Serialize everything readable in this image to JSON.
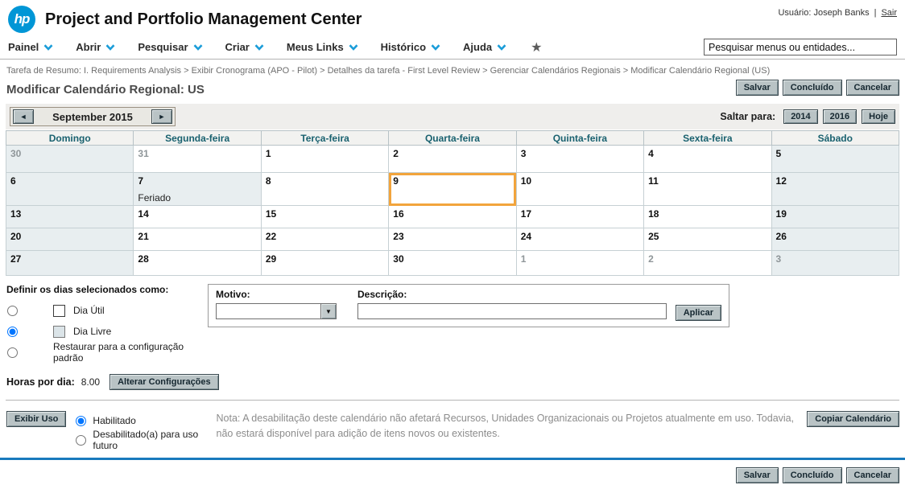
{
  "header": {
    "logo_text": "hp",
    "app_title": "Project and Portfolio Management Center",
    "user_label": "Usuário: Joseph Banks",
    "separator": "|",
    "sign_out": "Sair"
  },
  "menubar": {
    "items": [
      "Painel",
      "Abrir",
      "Pesquisar",
      "Criar",
      "Meus Links",
      "Histórico",
      "Ajuda"
    ],
    "search_placeholder": "Pesquisar menus ou entidades..."
  },
  "breadcrumb": {
    "text": "Tarefa de Resumo: I. Requirements Analysis > Exibir Cronograma (APO - Pilot) > Detalhes da tarefa - First Level Review > Gerenciar Calendários Regionais > Modificar Calendário Regional (US)"
  },
  "page": {
    "title": "Modificar Calendário Regional: US",
    "actions": {
      "save": "Salvar",
      "done": "Concluído",
      "cancel": "Cancelar"
    }
  },
  "calendar": {
    "month_label": "September 2015",
    "jump": {
      "label": "Saltar para:",
      "year_prev": "2014",
      "year_next": "2016",
      "today": "Hoje"
    },
    "day_headers": [
      "Domingo",
      "Segunda-feira",
      "Terça-feira",
      "Quarta-feira",
      "Quinta-feira",
      "Sexta-feira",
      "Sábado"
    ],
    "weeks": [
      [
        {
          "day": "30",
          "shaded": true,
          "muted": true
        },
        {
          "day": "31",
          "muted": true
        },
        {
          "day": "1"
        },
        {
          "day": "2"
        },
        {
          "day": "3"
        },
        {
          "day": "4"
        },
        {
          "day": "5",
          "shaded": true
        }
      ],
      [
        {
          "day": "6",
          "shaded": true
        },
        {
          "day": "7",
          "shaded": true,
          "note": "Feriado"
        },
        {
          "day": "8"
        },
        {
          "day": "9",
          "selected": true
        },
        {
          "day": "10"
        },
        {
          "day": "11"
        },
        {
          "day": "12",
          "shaded": true
        }
      ],
      [
        {
          "day": "13",
          "shaded": true
        },
        {
          "day": "14"
        },
        {
          "day": "15"
        },
        {
          "day": "16"
        },
        {
          "day": "17"
        },
        {
          "day": "18"
        },
        {
          "day": "19",
          "shaded": true
        }
      ],
      [
        {
          "day": "20",
          "shaded": true
        },
        {
          "day": "21"
        },
        {
          "day": "22"
        },
        {
          "day": "23"
        },
        {
          "day": "24"
        },
        {
          "day": "25"
        },
        {
          "day": "26",
          "shaded": true
        }
      ],
      [
        {
          "day": "27",
          "shaded": true
        },
        {
          "day": "28"
        },
        {
          "day": "29"
        },
        {
          "day": "30"
        },
        {
          "day": "1",
          "muted": true
        },
        {
          "day": "2",
          "muted": true
        },
        {
          "day": "3",
          "shaded": true,
          "muted": true
        }
      ]
    ]
  },
  "day_settings": {
    "label": "Definir os dias selecionados como:",
    "options": [
      {
        "label": "Dia Útil",
        "selected": false
      },
      {
        "label": "Dia Livre",
        "selected": true
      },
      {
        "label": "Restaurar para a configuração padrão",
        "selected": false
      }
    ]
  },
  "reason": {
    "motivo_label": "Motivo:",
    "motivo_value": "",
    "descricao_label": "Descrição:",
    "descricao_value": "",
    "apply_label": "Aplicar"
  },
  "hours": {
    "label": "Horas por dia:",
    "value": "8.00",
    "change_button": "Alterar Configurações"
  },
  "usage": {
    "show_button": "Exibir Uso",
    "options": [
      {
        "label": "Habilitado",
        "selected": true
      },
      {
        "label": "Desabilitado(a) para uso futuro",
        "selected": false
      }
    ],
    "note": "Nota: A desabilitação deste calendário não afetará Recursos, Unidades Organizacionais ou Projetos atualmente em uso. Todavia, não estará disponível para adição de itens novos ou existentes.",
    "copy_button": "Copiar Calendário"
  },
  "colors": {
    "hp_blue": "#0096d6",
    "menu_chevron_blue": "#1b9dd9",
    "selected_day_orange": "#f2a43c",
    "weekend_cell_bg": "#e8eef0",
    "calendar_header_teal": "#19616f",
    "footer_line_blue": "#187abd"
  }
}
